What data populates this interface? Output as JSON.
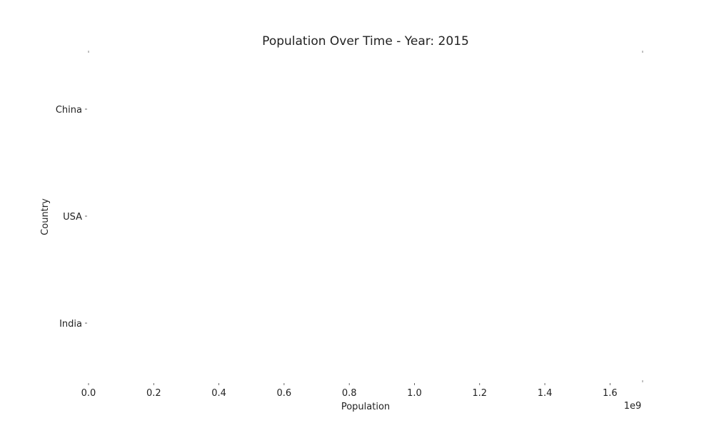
{
  "chart_data": {
    "type": "bar",
    "orientation": "horizontal",
    "title": "Population Over Time - Year: 2015",
    "xlabel": "Population",
    "ylabel": "Country",
    "categories": [
      "China",
      "USA",
      "India"
    ],
    "values": [
      null,
      null,
      null
    ],
    "xlim": [
      0,
      1.7
    ],
    "xticks": [
      "0.0",
      "0.2",
      "0.4",
      "0.6",
      "0.8",
      "1.0",
      "1.2",
      "1.4",
      "1.6"
    ],
    "x_offset_label": "1e9",
    "grid": false
  }
}
